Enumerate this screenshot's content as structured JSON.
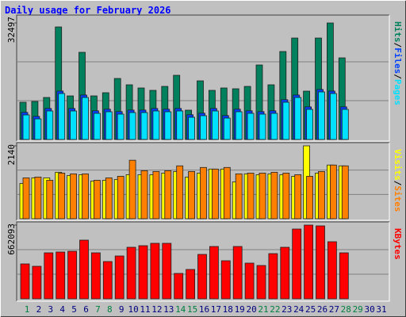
{
  "chart_data": [
    {
      "type": "bar",
      "title": "Daily usage for February 2026",
      "ylim": [
        0,
        32497
      ],
      "yticks": [
        32497
      ],
      "legend_separator": "/",
      "series": [
        {
          "name": "Hits",
          "color": "#00805c",
          "values": [
            10390,
            10611,
            11717,
            31391,
            12159,
            24317,
            12159,
            13043,
            17022,
            15254,
            14369,
            13706,
            14811,
            17906,
            8179,
            16359,
            13706,
            14369,
            14148,
            14811,
            20780,
            15254,
            24538,
            28296,
            13485,
            28296,
            32497,
            22770,
            null,
            null,
            null
          ]
        },
        {
          "name": "Files",
          "color": "#0040ff",
          "values": [
            7550,
            6450,
            8650,
            13500,
            8650,
            12400,
            8000,
            8450,
            7780,
            8200,
            8200,
            8650,
            8450,
            8650,
            6900,
            7330,
            8650,
            6670,
            8450,
            8000,
            7780,
            8000,
            11100,
            12400,
            9100,
            13950,
            13500,
            9100,
            null,
            null,
            null
          ]
        },
        {
          "name": "Pages",
          "color": "#00e0ff",
          "values": [
            6853,
            5748,
            7958,
            12822,
            7958,
            11717,
            7295,
            7737,
            7074,
            7516,
            7516,
            7958,
            7737,
            7958,
            6190,
            6632,
            7958,
            5969,
            7737,
            7295,
            7074,
            7295,
            10390,
            11717,
            8400,
            13264,
            12822,
            8400,
            null,
            null,
            null
          ]
        }
      ]
    },
    {
      "type": "bar",
      "ylim": [
        0,
        2140
      ],
      "yticks": [
        2140
      ],
      "legend_separator": "/",
      "series": [
        {
          "name": "Visits",
          "color": "#ffff00",
          "values": [
            1035,
            1199,
            1199,
            1364,
            1270,
            1293,
            1105,
            1129,
            1152,
            1293,
            1293,
            1293,
            1340,
            1387,
            1223,
            1340,
            1458,
            1458,
            1082,
            1317,
            1293,
            1317,
            1293,
            1246,
            2140,
            1340,
            1576,
            1552,
            null,
            null,
            null
          ]
        },
        {
          "name": "Sites",
          "color": "#ff8000",
          "values": [
            1199,
            1223,
            1129,
            1340,
            1317,
            1317,
            1129,
            1199,
            1246,
            1717,
            1411,
            1387,
            1411,
            1552,
            1387,
            1505,
            1458,
            1505,
            1317,
            1340,
            1340,
            1364,
            1340,
            1293,
            1246,
            1387,
            1576,
            1552,
            null,
            null,
            null
          ]
        }
      ]
    },
    {
      "type": "bar",
      "ylim": [
        0,
        662093
      ],
      "yticks": [
        662093
      ],
      "categories": [
        "1",
        "2",
        "3",
        "4",
        "5",
        "6",
        "7",
        "8",
        "9",
        "10",
        "11",
        "12",
        "13",
        "14",
        "15",
        "16",
        "17",
        "18",
        "19",
        "20",
        "21",
        "22",
        "23",
        "24",
        "25",
        "26",
        "27",
        "28",
        "29",
        "30",
        "31"
      ],
      "label_colors": [
        "#008040",
        "#000080",
        "#000080",
        "#000080",
        "#000080",
        "#000080",
        "#008040",
        "#008040",
        "#000080",
        "#000080",
        "#000080",
        "#000080",
        "#000080",
        "#008040",
        "#008040",
        "#000080",
        "#000080",
        "#000080",
        "#000080",
        "#000080",
        "#008040",
        "#008040",
        "#000080",
        "#000080",
        "#000080",
        "#000080",
        "#000080",
        "#008040",
        "#008040",
        "#000080",
        "#000080"
      ],
      "series": [
        {
          "name": "KBytes",
          "color": "#ff0000",
          "values": [
            313245,
            291890,
            412920,
            420038,
            427157,
            526822,
            412920,
            334601,
            384445,
            462749,
            476988,
            498342,
            498342,
            227813,
            263409,
            398682,
            469868,
            341720,
            469868,
            320364,
            299009,
            405801,
            462749,
            626497,
            662093,
            654974,
            512583,
            412920,
            null,
            null,
            null
          ]
        }
      ]
    }
  ]
}
